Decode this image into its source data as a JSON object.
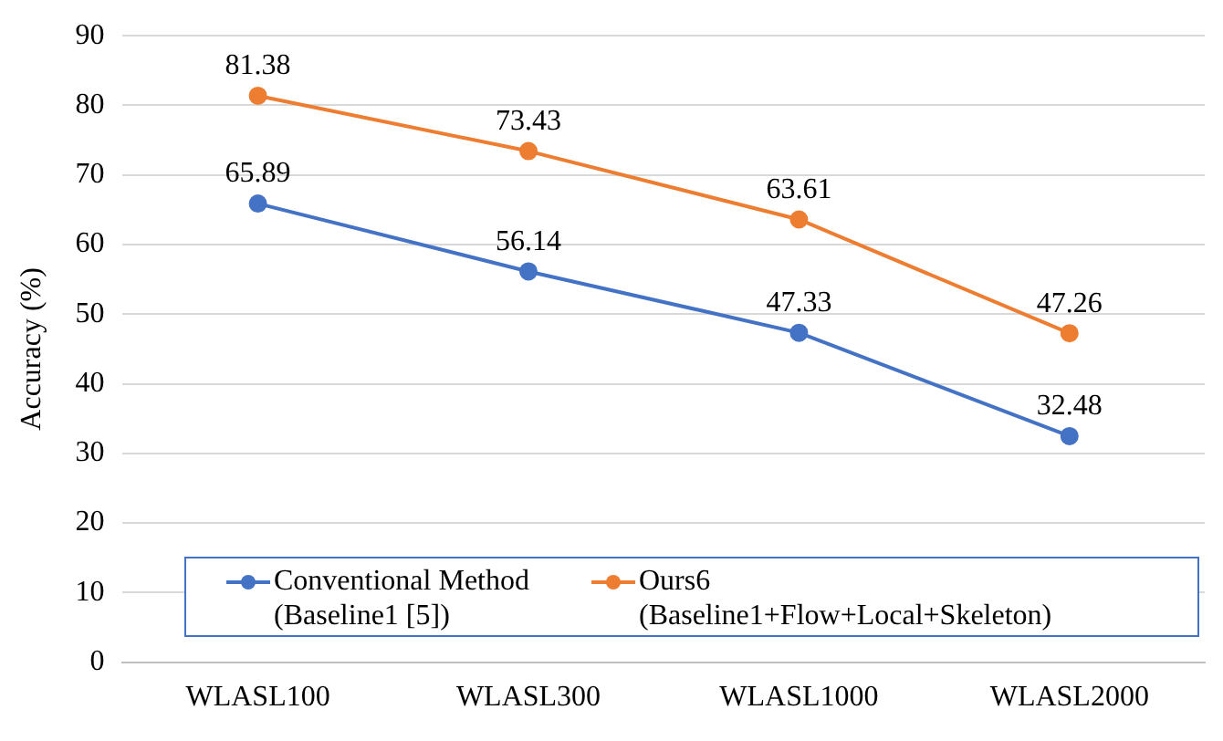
{
  "chart_data": {
    "type": "line",
    "ylabel": "Accuracy (%)",
    "categories": [
      "WLASL100",
      "WLASL300",
      "WLASL1000",
      "WLASL2000"
    ],
    "series": [
      {
        "name": "Conventional Method\n(Baseline1 [5])",
        "color": "#4472c4",
        "values": [
          65.89,
          56.14,
          47.33,
          32.48
        ]
      },
      {
        "name": "Ours6\n(Baseline1+Flow+Local+Skeleton)",
        "color": "#ed7d31",
        "values": [
          81.38,
          73.43,
          63.61,
          47.26
        ]
      }
    ],
    "ylim": [
      0,
      90
    ],
    "yticks": [
      0,
      10,
      20,
      30,
      40,
      50,
      60,
      70,
      80,
      90
    ],
    "grid": "y",
    "legend": "bottom",
    "marker": "circle",
    "line_style": "solid",
    "data_labels": true
  }
}
